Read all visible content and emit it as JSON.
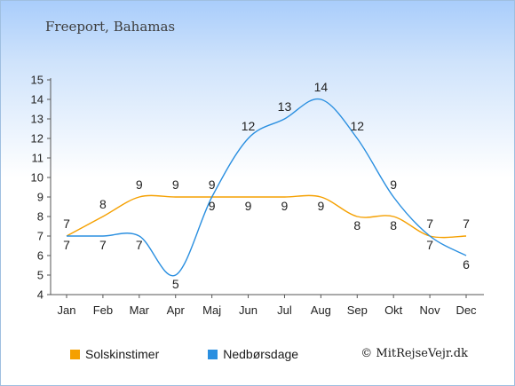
{
  "chart_data": {
    "type": "line",
    "title": "Freeport, Bahamas",
    "categories": [
      "Jan",
      "Feb",
      "Mar",
      "Apr",
      "Maj",
      "Jun",
      "Jul",
      "Aug",
      "Sep",
      "Okt",
      "Nov",
      "Dec"
    ],
    "ylim": [
      4,
      15
    ],
    "yticks": [
      4,
      5,
      6,
      7,
      8,
      9,
      10,
      11,
      12,
      13,
      14,
      15
    ],
    "series": [
      {
        "name": "Solskinstimer",
        "color": "#f5a000",
        "values": [
          7,
          8,
          9,
          9,
          9,
          9,
          9,
          9,
          8,
          8,
          7,
          7
        ]
      },
      {
        "name": "Nedbørsdage",
        "color": "#2a8fe0",
        "values": [
          7,
          7,
          7,
          5,
          9,
          12,
          13,
          14,
          12,
          9,
          7,
          6
        ]
      }
    ],
    "legend_position": "bottom-left",
    "grid": false
  },
  "copyright": "© MitRejseVejr.dk"
}
